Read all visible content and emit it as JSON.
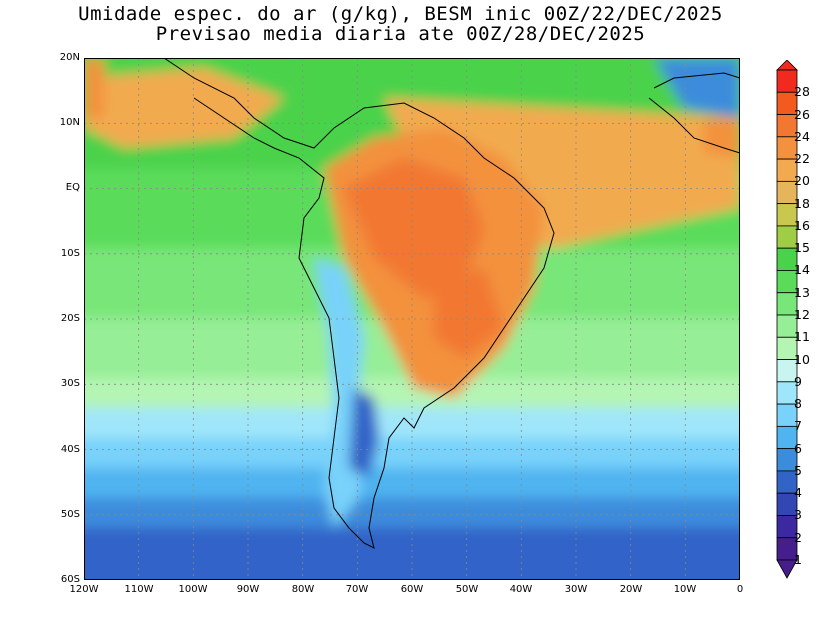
{
  "title": {
    "line1": "Umidade espec. do ar (g/kg), BESM inic 00Z/22/DEC/2025",
    "line2": "Previsao media diaria ate 00Z/28/DEC/2025"
  },
  "map": {
    "region": "South America",
    "lat_labels": [
      "20N",
      "10N",
      "EQ",
      "10S",
      "20S",
      "30S",
      "40S",
      "50S",
      "60S"
    ],
    "lon_labels": [
      "120W",
      "110W",
      "100W",
      "90W",
      "80W",
      "70W",
      "60W",
      "50W",
      "40W",
      "30W",
      "20W",
      "10W",
      "0"
    ],
    "lat_range": [
      -60,
      20
    ],
    "lon_range": [
      -120,
      0
    ],
    "gridlines": true
  },
  "colorbar": {
    "levels": [
      "28",
      "26",
      "24",
      "22",
      "20",
      "18",
      "16",
      "15",
      "14",
      "13",
      "12",
      "11",
      "10",
      "9",
      "8",
      "7",
      "6",
      "5",
      "4",
      "3",
      "2",
      "1"
    ],
    "colors": [
      "#f02a1e",
      "#f35a1e",
      "#f27832",
      "#f3913e",
      "#f2aa50",
      "#e6b45a",
      "#c8c84e",
      "#a0cd46",
      "#4bd24b",
      "#5adc5a",
      "#78e678",
      "#96ee96",
      "#b4f5b4",
      "#c8f5f0",
      "#a0e6fa",
      "#78d2fa",
      "#50b4f0",
      "#3c8cdc",
      "#3264c8",
      "#3246b4",
      "#3c28a0",
      "#461e8c"
    ]
  }
}
